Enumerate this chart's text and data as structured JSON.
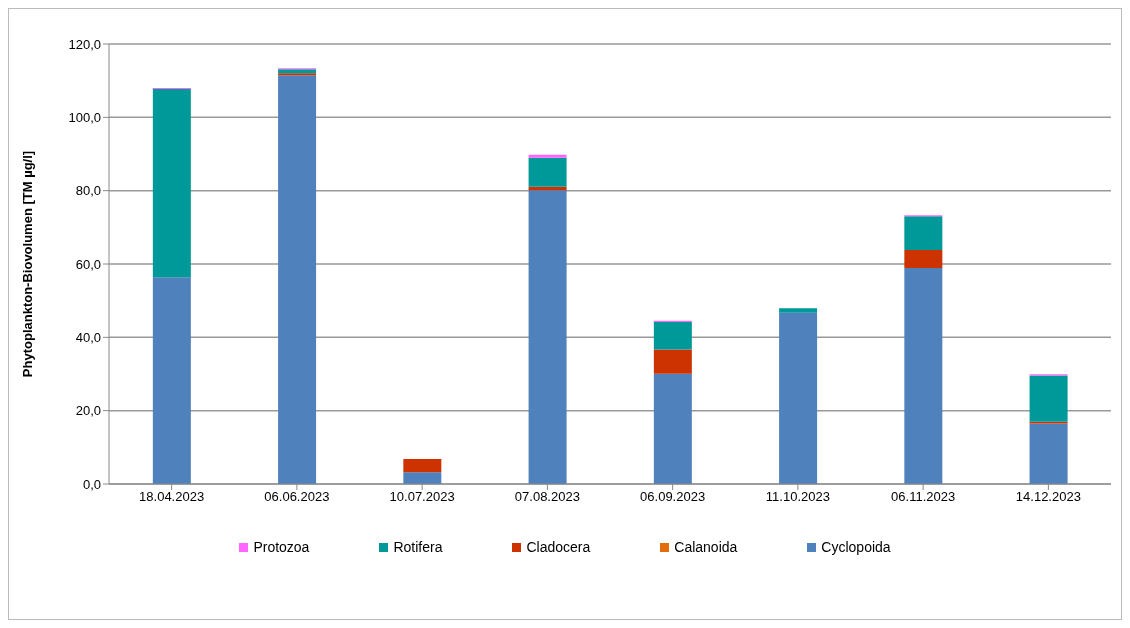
{
  "chart_data": {
    "type": "bar",
    "stacked": true,
    "ylabel": "Phytoplankton-Biovolumen [TM µg/l]",
    "categories": [
      "18.04.2023",
      "06.06.2023",
      "10.07.2023",
      "07.08.2023",
      "06.09.2023",
      "11.10.2023",
      "06.11.2023",
      "14.12.2023"
    ],
    "series": [
      {
        "name": "Cyclopoida",
        "color": "#4f81bd",
        "values": [
          56.4,
          111.5,
          3.2,
          80.1,
          30.1,
          46.7,
          58.9,
          16.5
        ]
      },
      {
        "name": "Calanoida",
        "color": "#e46c0a",
        "values": [
          0,
          0,
          0,
          0,
          0,
          0,
          0,
          0
        ]
      },
      {
        "name": "Cladocera",
        "color": "#cc3300",
        "values": [
          0,
          0.5,
          3.6,
          1.0,
          6.6,
          0,
          4.9,
          0.5
        ]
      },
      {
        "name": "Rotifera",
        "color": "#009999",
        "values": [
          51.3,
          1.1,
          null,
          7.9,
          7.5,
          1.2,
          9.2,
          12.6
        ]
      },
      {
        "name": "Protozoa",
        "color": "#ff66ff",
        "values": [
          0.3,
          0.3,
          0,
          0.8,
          0.3,
          null,
          0.3,
          0.3
        ]
      }
    ],
    "ylim": [
      0,
      120
    ],
    "yticks": [
      {
        "value": 0,
        "label": "0,0"
      },
      {
        "value": 20,
        "label": "20,0"
      },
      {
        "value": 40,
        "label": "40,0"
      },
      {
        "value": 60,
        "label": "60,0"
      },
      {
        "value": 80,
        "label": "80,0"
      },
      {
        "value": 100,
        "label": "100,0"
      },
      {
        "value": 120,
        "label": "120,0"
      }
    ],
    "grid": "y",
    "legend": "bottom"
  }
}
